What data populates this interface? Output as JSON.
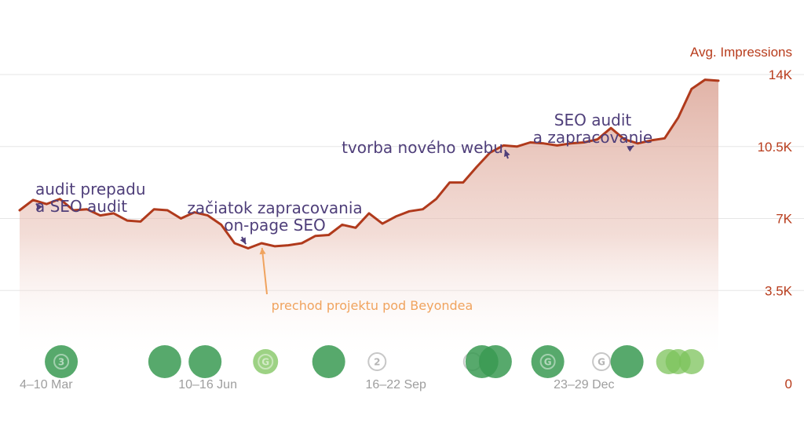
{
  "chart_data": {
    "type": "area",
    "ylabel": "Avg. Impressions",
    "ylim": [
      0,
      14000
    ],
    "yticks": [
      "0",
      "3.5K",
      "7K",
      "10.5K",
      "14K"
    ],
    "y_axis_position": "right",
    "grid": true,
    "x_tick_labels": [
      {
        "label": "4–10 Mar",
        "index": 0
      },
      {
        "label": "10–16 Jun",
        "index": 14
      },
      {
        "label": "16–22 Sep",
        "index": 28
      },
      {
        "label": "23–29 Dec",
        "index": 42
      }
    ],
    "series": [
      {
        "name": "Avg. Impressions",
        "color": "#b03a1c",
        "values": [
          7400,
          7900,
          7700,
          7950,
          7400,
          7450,
          7150,
          7250,
          6900,
          6850,
          7450,
          7400,
          7000,
          7300,
          7150,
          6700,
          5800,
          5550,
          5800,
          5650,
          5700,
          5800,
          6150,
          6200,
          6700,
          6550,
          7250,
          6750,
          7100,
          7350,
          7450,
          7950,
          8750,
          8750,
          9500,
          10200,
          10550,
          10500,
          10700,
          10650,
          10550,
          10650,
          10700,
          10850,
          11400,
          10850,
          10650,
          10800,
          10900,
          11900,
          13300,
          13750,
          13700
        ]
      }
    ],
    "annotations": [
      {
        "lines": [
          "audit prepadu",
          "a SEO audit"
        ],
        "index": 1,
        "color": "#4f3f7a"
      },
      {
        "lines": [
          "začiatok zapracovania",
          "on-page SEO"
        ],
        "index": 17,
        "color": "#4f3f7a"
      },
      {
        "lines": [
          "prechod projektu pod Beyondea"
        ],
        "index": 18,
        "color": "#f0a35e"
      },
      {
        "lines": [
          "tvorba nového webu"
        ],
        "index": 36,
        "color": "#4f3f7a"
      },
      {
        "lines": [
          "SEO audit",
          "a zapracovanie"
        ],
        "index": 46,
        "color": "#4f3f7a"
      }
    ],
    "event_markers": [
      {
        "index": 3.1,
        "color": "#3a9a52",
        "text": "3"
      },
      {
        "index": 10.8,
        "color": "#3a9a52",
        "text": ""
      },
      {
        "index": 13.8,
        "color": "#3a9a52",
        "text": ""
      },
      {
        "index": 18.3,
        "color": "#7cc35b",
        "text": "G"
      },
      {
        "index": 23.0,
        "color": "#3a9a52",
        "text": ""
      },
      {
        "index": 26.6,
        "color": "#c7c7c7",
        "text": "2"
      },
      {
        "index": 33.7,
        "color": "#c7c7c7",
        "text": ""
      },
      {
        "index": 34.4,
        "color": "#3a9a52",
        "text": ""
      },
      {
        "index": 35.4,
        "color": "#3a9a52",
        "text": ""
      },
      {
        "index": 39.3,
        "color": "#3a9a52",
        "text": "G"
      },
      {
        "index": 43.3,
        "color": "#c7c7c7",
        "text": "G"
      },
      {
        "index": 45.2,
        "color": "#3a9a52",
        "text": ""
      },
      {
        "index": 48.3,
        "color": "#7cc35b",
        "text": ""
      },
      {
        "index": 49.0,
        "color": "#7cc35b",
        "text": ""
      },
      {
        "index": 50.0,
        "color": "#7cc35b",
        "text": ""
      }
    ]
  }
}
